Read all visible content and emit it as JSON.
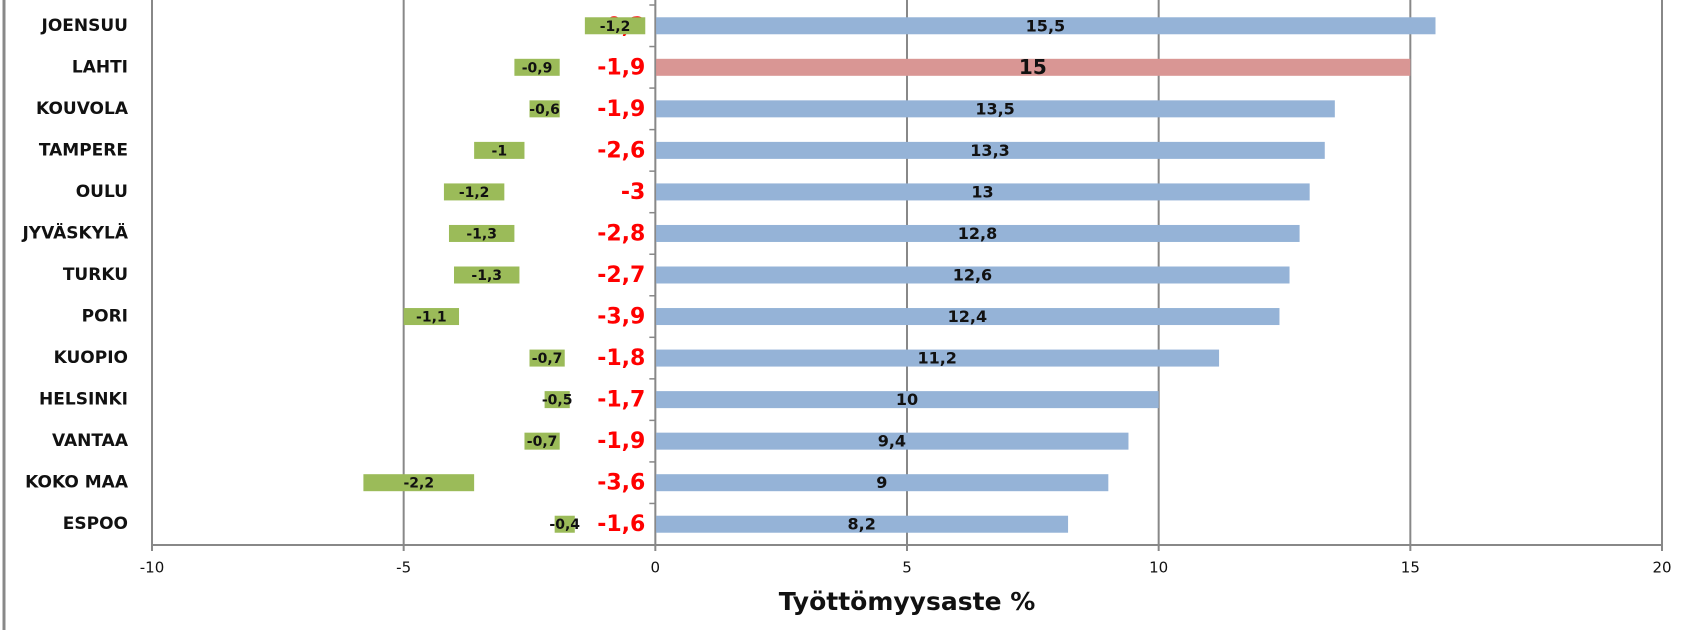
{
  "chart_data": {
    "type": "bar",
    "orientation": "horizontal",
    "stacked_negative": true,
    "xlabel": "Työttömyysaste %",
    "categories": [
      "JOENSUU",
      "LAHTI",
      "KOUVOLA",
      "TAMPERE",
      "OULU",
      "JYVÄSKYLÄ",
      "TURKU",
      "PORI",
      "KUOPIO",
      "HELSINKI",
      "VANTAA",
      "KOKO MAA",
      "ESPOO"
    ],
    "series": [
      {
        "colors": [
          "#95b3d7",
          "#d99694",
          "#95b3d7",
          "#95b3d7",
          "#95b3d7",
          "#95b3d7",
          "#95b3d7",
          "#95b3d7",
          "#95b3d7",
          "#95b3d7",
          "#95b3d7",
          "#95b3d7",
          "#95b3d7"
        ],
        "values": [
          15.5,
          15,
          13.5,
          13.3,
          13,
          12.8,
          12.6,
          12.4,
          11.2,
          10,
          9.4,
          9,
          8.2
        ],
        "value_labels": [
          "15,5",
          "15",
          "13,5",
          "13,3",
          "13",
          "12,8",
          "12,6",
          "12,4",
          "11,2",
          "10",
          "9,4",
          "9",
          "8,2"
        ]
      },
      {
        "color": "none",
        "label_color": "#ff0000",
        "values": [
          -0.2,
          -1.9,
          -1.9,
          -2.6,
          -3,
          -2.8,
          -2.7,
          -3.9,
          -1.8,
          -1.7,
          -1.9,
          -3.6,
          -1.6
        ],
        "value_labels": [
          "-0,2",
          "-1,9",
          "-1,9",
          "-2,6",
          "-3",
          "-2,8",
          "-2,7",
          "-3,9",
          "-1,8",
          "-1,7",
          "-1,9",
          "-3,6",
          "-1,6"
        ]
      },
      {
        "color": "#9bbb59",
        "label_color": "#111111",
        "values": [
          -1.2,
          -0.9,
          -0.6,
          -1,
          -1.2,
          -1.3,
          -1.3,
          -1.1,
          -0.7,
          -0.5,
          -0.7,
          -2.2,
          -0.4
        ],
        "value_labels": [
          "-1,2",
          "-0,9",
          "-0,6",
          "-1",
          "-1,2",
          "-1,3",
          "-1,3",
          "-1,1",
          "-0,7",
          "-0,5",
          "-0,7",
          "-2,2",
          "-0,4"
        ]
      }
    ],
    "xlim": [
      -10,
      20
    ],
    "xticks": [
      -10,
      -5,
      0,
      5,
      10,
      15,
      20
    ],
    "grid": true
  }
}
